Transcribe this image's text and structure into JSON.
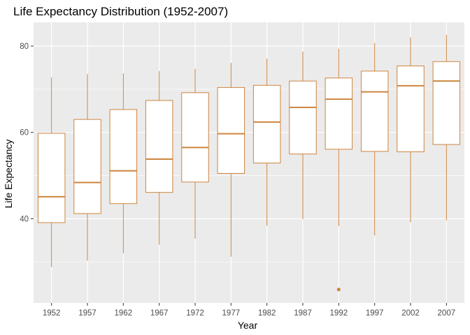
{
  "chart_data": {
    "type": "boxplot",
    "title": "Life Expectancy Distribution (1952-2007)",
    "xlabel": "Year",
    "ylabel": "Life Expectancy",
    "ylim": [
      20.5,
      85.5
    ],
    "yticks": [
      40,
      60,
      80
    ],
    "grid": true,
    "legend": "none",
    "colors": {
      "panel": "#ebebeb",
      "grid": "#ffffff",
      "box_stroke": "#cd853f",
      "box_fill": "#ffffff",
      "tick_text": "#4d4d4d"
    },
    "categories": [
      "1952",
      "1957",
      "1962",
      "1967",
      "1972",
      "1977",
      "1982",
      "1987",
      "1992",
      "1997",
      "2002",
      "2007"
    ],
    "boxes": [
      {
        "year": "1952",
        "min": 28.8,
        "q1": 39.1,
        "median": 45.1,
        "q3": 59.8,
        "max": 72.7
      },
      {
        "year": "1957",
        "min": 30.3,
        "q1": 41.2,
        "median": 48.4,
        "q3": 63.0,
        "max": 73.5
      },
      {
        "year": "1962",
        "min": 32.0,
        "q1": 43.5,
        "median": 51.1,
        "q3": 65.3,
        "max": 73.7
      },
      {
        "year": "1967",
        "min": 34.0,
        "q1": 46.1,
        "median": 53.8,
        "q3": 67.4,
        "max": 74.2
      },
      {
        "year": "1972",
        "min": 35.4,
        "q1": 48.5,
        "median": 56.5,
        "q3": 69.2,
        "max": 74.7
      },
      {
        "year": "1977",
        "min": 31.2,
        "q1": 50.5,
        "median": 59.7,
        "q3": 70.4,
        "max": 76.1
      },
      {
        "year": "1982",
        "min": 38.4,
        "q1": 52.9,
        "median": 62.4,
        "q3": 70.9,
        "max": 77.1
      },
      {
        "year": "1987",
        "min": 39.9,
        "q1": 55.0,
        "median": 65.8,
        "q3": 71.9,
        "max": 78.7
      },
      {
        "year": "1992",
        "min": 38.3,
        "q1": 56.1,
        "median": 67.7,
        "q3": 72.6,
        "max": 79.4,
        "outliers": [
          23.6
        ]
      },
      {
        "year": "1997",
        "min": 36.1,
        "q1": 55.6,
        "median": 69.4,
        "q3": 74.2,
        "max": 80.7
      },
      {
        "year": "2002",
        "min": 39.2,
        "q1": 55.5,
        "median": 70.8,
        "q3": 75.4,
        "max": 82.0
      },
      {
        "year": "2007",
        "min": 39.6,
        "q1": 57.2,
        "median": 71.9,
        "q3": 76.4,
        "max": 82.6
      }
    ]
  }
}
